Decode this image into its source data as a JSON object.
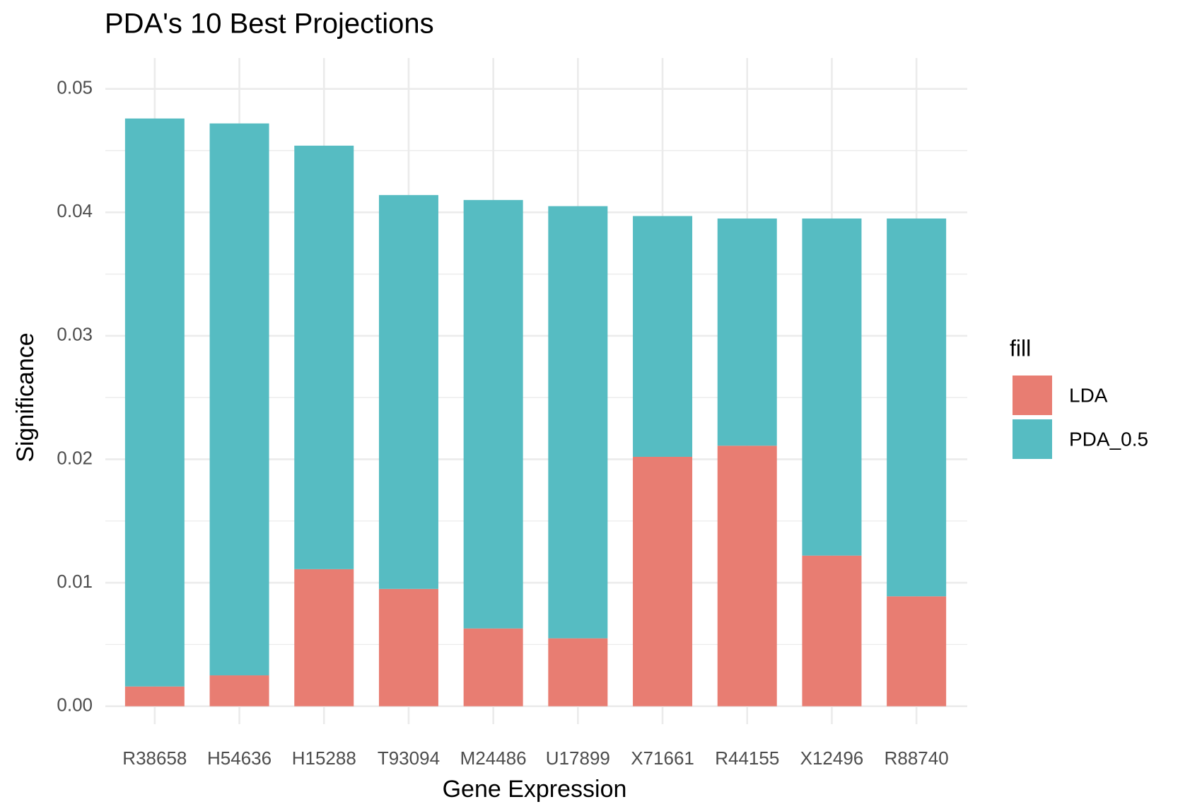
{
  "chart_data": {
    "type": "stacked_bar",
    "title": "PDA's 10 Best Projections",
    "x_label": "Gene Expression",
    "y_label": "Significance",
    "legend_title": "fill",
    "categories": [
      "R38658",
      "H54636",
      "H15288",
      "T93094",
      "M24486",
      "U17899",
      "X71661",
      "R44155",
      "X12496",
      "R88740"
    ],
    "series": [
      {
        "name": "LDA",
        "color": "#e87d72",
        "values": [
          0.0016,
          0.0025,
          0.0111,
          0.0095,
          0.0063,
          0.0055,
          0.0202,
          0.0211,
          0.0122,
          0.0089
        ]
      },
      {
        "name": "PDA_0.5",
        "color": "#56bcc2",
        "values": [
          0.046,
          0.0447,
          0.0343,
          0.0319,
          0.0347,
          0.035,
          0.0195,
          0.0184,
          0.0273,
          0.0306
        ]
      }
    ],
    "ylim": [
      -0.00145,
      0.0525
    ],
    "yticks": [
      {
        "value": 0,
        "label": "0.00"
      },
      0.01,
      0.02,
      0.03,
      0.04,
      0.05
    ],
    "yminor": [
      0.005,
      0.015,
      0.025,
      0.035,
      0.045
    ],
    "grid": true,
    "legend_position": "right"
  }
}
